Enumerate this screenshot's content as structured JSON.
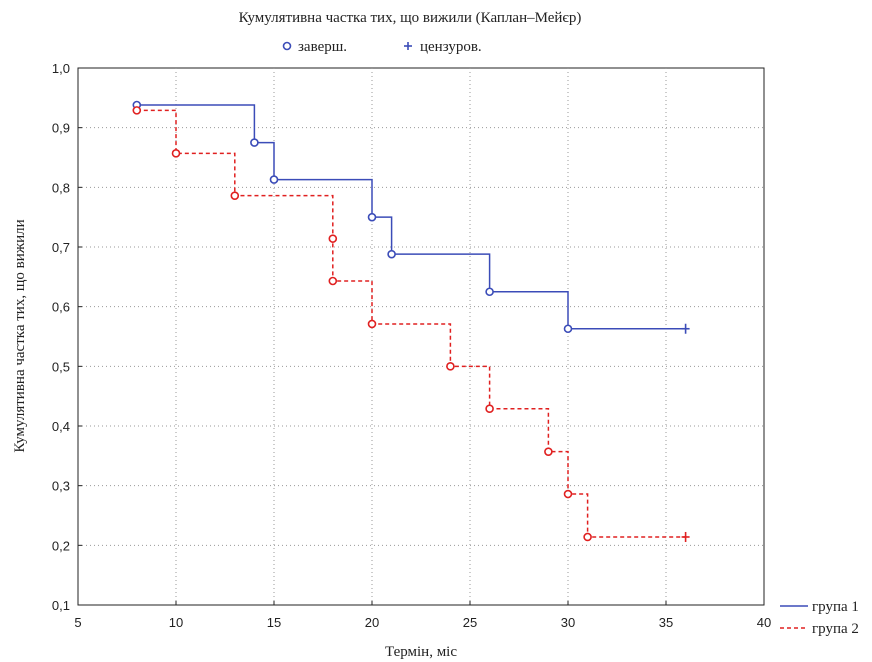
{
  "chart_data": {
    "type": "line",
    "title": "Кумулятивна частка тих, що вижили (Каплан–Мейєр)",
    "marker_legend": {
      "complete_label": "заверш.",
      "censored_label": "цензуров."
    },
    "xlabel": "Термін, міс",
    "ylabel": "Кумулятивна частка тих, що вижили",
    "xlim": [
      5,
      40
    ],
    "ylim": [
      0.1,
      1.0
    ],
    "xticks": [
      "5",
      "10",
      "15",
      "20",
      "25",
      "30",
      "35",
      "40"
    ],
    "yticks": [
      "0,1",
      "0,2",
      "0,3",
      "0,4",
      "0,5",
      "0,6",
      "0,7",
      "0,8",
      "0,9",
      "1,0"
    ],
    "grid": true,
    "legend_position": "bottom-right",
    "series": [
      {
        "name": "група 1",
        "color": "#3b4cb8",
        "dash": "solid",
        "x": [
          8,
          14,
          15,
          20,
          21,
          26,
          30
        ],
        "y": [
          0.938,
          0.875,
          0.813,
          0.75,
          0.688,
          0.625,
          0.563
        ],
        "censored": [
          [
            36,
            0.563
          ]
        ]
      },
      {
        "name": "група 2",
        "color": "#e02020",
        "dash": "dashed",
        "x": [
          8,
          10,
          13,
          18,
          18,
          20,
          24,
          26,
          29,
          30,
          31
        ],
        "y": [
          0.929,
          0.857,
          0.786,
          0.714,
          0.643,
          0.571,
          0.5,
          0.429,
          0.357,
          0.286,
          0.214
        ],
        "censored": [
          [
            36,
            0.214
          ]
        ]
      }
    ]
  }
}
